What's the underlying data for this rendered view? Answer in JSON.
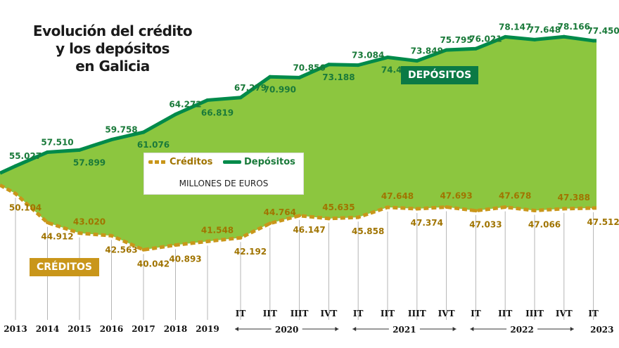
{
  "title_lines": [
    "Evolución del crédito",
    "y los depósitos",
    "en Galicia"
  ],
  "units_label": "MILLONES DE EUROS",
  "legend": [
    {
      "label": "Créditos",
      "color": "#c9961a"
    },
    {
      "label": "Depósitos",
      "color": "#008a4a"
    }
  ],
  "series_tags": {
    "depositos": "DEPÓSITOS",
    "creditos": "CRÉDITOS"
  },
  "colors": {
    "fill": "#8cc63f",
    "depositos": "#008a4a",
    "creditos": "#c9961a",
    "depositos_label": "#1a7a3a",
    "creditos_label": "#a07400"
  },
  "x_labels": [
    "2013",
    "2014",
    "2015",
    "2016",
    "2017",
    "2018",
    "2019",
    "IT",
    "IIT",
    "IIIT",
    "IVT",
    "IT",
    "IIT",
    "IIIT",
    "IVT",
    "IT",
    "IIT",
    "IIIT",
    "IVT",
    "IT"
  ],
  "year_groups": [
    "2020",
    "2021",
    "2022",
    "2023"
  ],
  "chart_data": {
    "type": "area",
    "title": "Evolución del crédito y los depósitos en Galicia",
    "ylabel": "MILLONES DE EUROS",
    "categories": [
      "2013",
      "2014",
      "2015",
      "2016",
      "2017",
      "2018",
      "2019",
      "2020 IT",
      "2020 IIT",
      "2020 IIIT",
      "2020 IVT",
      "2021 IT",
      "2021 IIT",
      "2021 IIIT",
      "2021 IVT",
      "2022 IT",
      "2022 IIT",
      "2022 IIIT",
      "2022 IVT",
      "2023 IT"
    ],
    "series": [
      {
        "name": "Depósitos",
        "values": [
          55027,
          57510,
          57899,
          59758,
          61076,
          64272,
          66819,
          67279,
          70990,
          70856,
          73188,
          73084,
          74481,
          73849,
          75795,
          76021,
          78147,
          77648,
          78166,
          77450
        ],
        "labels": [
          "55.027",
          "57.510",
          "57.899",
          "59.758",
          "61.076",
          "64.272",
          "66.819",
          "67.279",
          "70.990",
          "70.856",
          "73.188",
          "73.084",
          "74.481",
          "73.849",
          "75.795",
          "76.021",
          "78.147",
          "77.648",
          "78.166",
          "77.450"
        ]
      },
      {
        "name": "Créditos",
        "values": [
          50104,
          44912,
          43020,
          42563,
          40042,
          40893,
          41548,
          42192,
          44764,
          46147,
          45635,
          45858,
          47648,
          47374,
          47693,
          47033,
          47678,
          47066,
          47388,
          47512
        ],
        "labels": [
          "50.104",
          "44.912",
          "43.020",
          "42.563",
          "40.042",
          "40.893",
          "41.548",
          "42.192",
          "44.764",
          "46.147",
          "45.635",
          "45.858",
          "47.648",
          "47.374",
          "47.693",
          "47.033",
          "47.678",
          "47.066",
          "47.388",
          "47.512"
        ]
      }
    ]
  }
}
